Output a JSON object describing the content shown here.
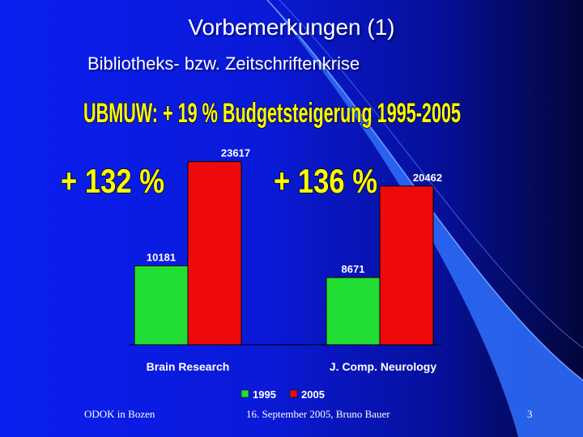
{
  "slide": {
    "title": "Vorbemerkungen (1)",
    "subtitle": "Bibliotheks- bzw. Zeitschriftenkrise"
  },
  "chart_data": {
    "type": "bar",
    "title": "UBMUW: + 19 % Budgetsteigerung 1995-2005",
    "categories": [
      "Brain Research",
      "J. Comp. Neurology"
    ],
    "series": [
      {
        "name": "1995",
        "values": [
          10181,
          8671
        ]
      },
      {
        "name": "2005",
        "values": [
          23617,
          20462
        ]
      }
    ],
    "data_labels": [
      [
        "10181",
        "23617"
      ],
      [
        "8671",
        "20462"
      ]
    ],
    "annotations": [
      "+ 132 %",
      "+ 136 %"
    ],
    "ylim": [
      0,
      24000
    ],
    "grid": false,
    "legend": "bottom-center",
    "colors": [
      "#22dd33",
      "#ee0a0a"
    ]
  },
  "footer": {
    "left": "ODOK in Bozen",
    "center": "16. September 2005, Bruno Bauer",
    "page": "3"
  }
}
